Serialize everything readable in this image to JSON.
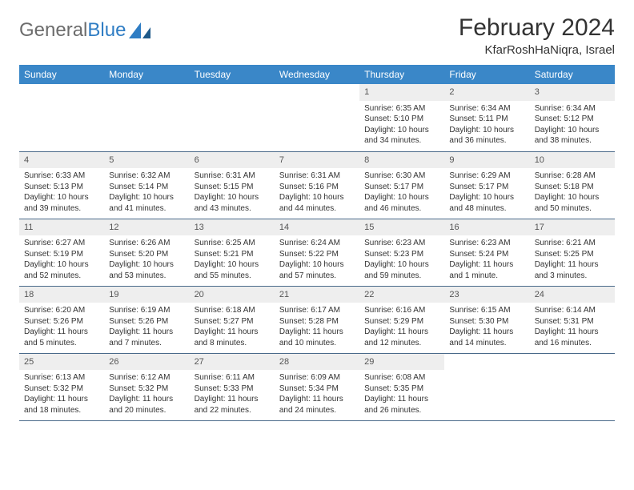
{
  "brand": {
    "part1": "General",
    "part2": "Blue"
  },
  "title": "February 2024",
  "location": "KfarRoshHaNiqra, Israel",
  "colors": {
    "header_bg": "#3a87c8",
    "header_text": "#ffffff",
    "daynum_bg": "#eeeeee",
    "border": "#4a6a8a",
    "brand_grey": "#6c6c6c",
    "brand_blue": "#2f7dc4"
  },
  "weekdays": [
    "Sunday",
    "Monday",
    "Tuesday",
    "Wednesday",
    "Thursday",
    "Friday",
    "Saturday"
  ],
  "grid": [
    [
      null,
      null,
      null,
      null,
      {
        "d": "1",
        "sr": "6:35 AM",
        "ss": "5:10 PM",
        "dl": "10 hours and 34 minutes."
      },
      {
        "d": "2",
        "sr": "6:34 AM",
        "ss": "5:11 PM",
        "dl": "10 hours and 36 minutes."
      },
      {
        "d": "3",
        "sr": "6:34 AM",
        "ss": "5:12 PM",
        "dl": "10 hours and 38 minutes."
      }
    ],
    [
      {
        "d": "4",
        "sr": "6:33 AM",
        "ss": "5:13 PM",
        "dl": "10 hours and 39 minutes."
      },
      {
        "d": "5",
        "sr": "6:32 AM",
        "ss": "5:14 PM",
        "dl": "10 hours and 41 minutes."
      },
      {
        "d": "6",
        "sr": "6:31 AM",
        "ss": "5:15 PM",
        "dl": "10 hours and 43 minutes."
      },
      {
        "d": "7",
        "sr": "6:31 AM",
        "ss": "5:16 PM",
        "dl": "10 hours and 44 minutes."
      },
      {
        "d": "8",
        "sr": "6:30 AM",
        "ss": "5:17 PM",
        "dl": "10 hours and 46 minutes."
      },
      {
        "d": "9",
        "sr": "6:29 AM",
        "ss": "5:17 PM",
        "dl": "10 hours and 48 minutes."
      },
      {
        "d": "10",
        "sr": "6:28 AM",
        "ss": "5:18 PM",
        "dl": "10 hours and 50 minutes."
      }
    ],
    [
      {
        "d": "11",
        "sr": "6:27 AM",
        "ss": "5:19 PM",
        "dl": "10 hours and 52 minutes."
      },
      {
        "d": "12",
        "sr": "6:26 AM",
        "ss": "5:20 PM",
        "dl": "10 hours and 53 minutes."
      },
      {
        "d": "13",
        "sr": "6:25 AM",
        "ss": "5:21 PM",
        "dl": "10 hours and 55 minutes."
      },
      {
        "d": "14",
        "sr": "6:24 AM",
        "ss": "5:22 PM",
        "dl": "10 hours and 57 minutes."
      },
      {
        "d": "15",
        "sr": "6:23 AM",
        "ss": "5:23 PM",
        "dl": "10 hours and 59 minutes."
      },
      {
        "d": "16",
        "sr": "6:23 AM",
        "ss": "5:24 PM",
        "dl": "11 hours and 1 minute."
      },
      {
        "d": "17",
        "sr": "6:21 AM",
        "ss": "5:25 PM",
        "dl": "11 hours and 3 minutes."
      }
    ],
    [
      {
        "d": "18",
        "sr": "6:20 AM",
        "ss": "5:26 PM",
        "dl": "11 hours and 5 minutes."
      },
      {
        "d": "19",
        "sr": "6:19 AM",
        "ss": "5:26 PM",
        "dl": "11 hours and 7 minutes."
      },
      {
        "d": "20",
        "sr": "6:18 AM",
        "ss": "5:27 PM",
        "dl": "11 hours and 8 minutes."
      },
      {
        "d": "21",
        "sr": "6:17 AM",
        "ss": "5:28 PM",
        "dl": "11 hours and 10 minutes."
      },
      {
        "d": "22",
        "sr": "6:16 AM",
        "ss": "5:29 PM",
        "dl": "11 hours and 12 minutes."
      },
      {
        "d": "23",
        "sr": "6:15 AM",
        "ss": "5:30 PM",
        "dl": "11 hours and 14 minutes."
      },
      {
        "d": "24",
        "sr": "6:14 AM",
        "ss": "5:31 PM",
        "dl": "11 hours and 16 minutes."
      }
    ],
    [
      {
        "d": "25",
        "sr": "6:13 AM",
        "ss": "5:32 PM",
        "dl": "11 hours and 18 minutes."
      },
      {
        "d": "26",
        "sr": "6:12 AM",
        "ss": "5:32 PM",
        "dl": "11 hours and 20 minutes."
      },
      {
        "d": "27",
        "sr": "6:11 AM",
        "ss": "5:33 PM",
        "dl": "11 hours and 22 minutes."
      },
      {
        "d": "28",
        "sr": "6:09 AM",
        "ss": "5:34 PM",
        "dl": "11 hours and 24 minutes."
      },
      {
        "d": "29",
        "sr": "6:08 AM",
        "ss": "5:35 PM",
        "dl": "11 hours and 26 minutes."
      },
      null,
      null
    ]
  ],
  "labels": {
    "sunrise": "Sunrise:",
    "sunset": "Sunset:",
    "daylight": "Daylight:"
  }
}
